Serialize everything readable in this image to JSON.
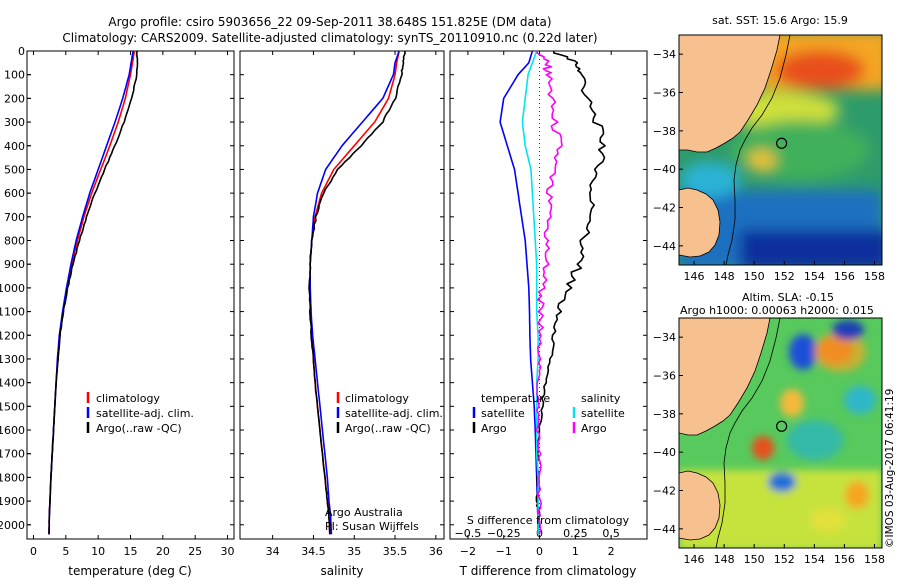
{
  "header": {
    "line1": "Argo profile: csiro 5903656_22 09-Sep-2011 38.648S 151.825E (DM data)",
    "line2": "Climatology: CARS2009. Satellite-adjusted climatology: synTS_20110910.nc (0.22d later)"
  },
  "depth_axis": {
    "ticks": [
      0,
      100,
      200,
      300,
      400,
      500,
      600,
      700,
      800,
      900,
      1000,
      1100,
      1200,
      1300,
      1400,
      1500,
      1600,
      1700,
      1800,
      1900,
      2000
    ],
    "range": [
      0,
      2060
    ]
  },
  "chart_data": [
    {
      "type": "line",
      "id": "temperature",
      "xlabel": "temperature (deg C)",
      "xlim": [
        -1,
        31
      ],
      "xticks": [
        0,
        5,
        10,
        15,
        20,
        25,
        30
      ],
      "y": [
        0,
        50,
        100,
        200,
        300,
        400,
        500,
        600,
        700,
        800,
        900,
        1000,
        1100,
        1200,
        1300,
        1400,
        1500,
        1600,
        1700,
        1800,
        1900,
        1960,
        2040
      ],
      "series": [
        {
          "name": "climatology",
          "color": "#ff0000",
          "values": [
            15.6,
            15.3,
            15.0,
            14.2,
            13.1,
            11.8,
            10.4,
            9.0,
            7.8,
            6.8,
            5.9,
            5.2,
            4.6,
            4.1,
            3.8,
            3.5,
            3.3,
            3.1,
            2.9,
            2.7,
            2.55,
            2.45,
            2.4
          ]
        },
        {
          "name": "satellite-adj. clim.",
          "color": "#0000ff",
          "values": [
            15.4,
            15.1,
            14.8,
            13.8,
            12.6,
            11.3,
            10.0,
            8.7,
            7.6,
            6.6,
            5.8,
            5.1,
            4.5,
            4.0,
            3.7,
            3.5,
            3.3,
            3.1,
            2.9,
            2.7,
            2.55,
            2.45,
            2.4
          ]
        },
        {
          "name": "Argo(..raw -QC)",
          "color": "#000000",
          "values": [
            16.0,
            16.1,
            16.0,
            15.2,
            14.0,
            12.6,
            11.0,
            9.5,
            8.2,
            7.1,
            6.1,
            5.3,
            4.6,
            4.1,
            3.8,
            3.5,
            3.3,
            3.1,
            2.9,
            2.7,
            2.55,
            2.45,
            2.4
          ]
        }
      ],
      "legend": "bottom-center"
    },
    {
      "type": "line",
      "id": "salinity",
      "xlabel": "salinity",
      "xlim": [
        33.6,
        36.1
      ],
      "xticks": [
        34,
        34.5,
        35,
        35.5,
        36
      ],
      "xtick_labels": [
        "34",
        "34.5",
        "35",
        "35.5",
        "36"
      ],
      "y": [
        0,
        50,
        100,
        200,
        300,
        400,
        500,
        600,
        700,
        800,
        900,
        1000,
        1100,
        1200,
        1300,
        1400,
        1500,
        1600,
        1700,
        1800,
        1900,
        1960,
        2040
      ],
      "series": [
        {
          "name": "climatology",
          "color": "#ff0000",
          "values": [
            35.55,
            35.52,
            35.5,
            35.42,
            35.25,
            35.0,
            34.75,
            34.6,
            34.52,
            34.48,
            34.46,
            34.46,
            34.47,
            34.48,
            34.5,
            34.52,
            34.55,
            34.58,
            34.61,
            34.64,
            34.67,
            34.69,
            34.7
          ]
        },
        {
          "name": "satellite-adj. clim.",
          "color": "#0000ff",
          "values": [
            35.55,
            35.5,
            35.48,
            35.35,
            35.1,
            34.85,
            34.65,
            34.55,
            34.5,
            34.48,
            34.46,
            34.46,
            34.47,
            34.49,
            34.52,
            34.55,
            34.58,
            34.61,
            34.64,
            34.67,
            34.69,
            34.71,
            34.72
          ]
        },
        {
          "name": "Argo(..raw -QC)",
          "color": "#000000",
          "values": [
            35.62,
            35.6,
            35.58,
            35.5,
            35.35,
            35.08,
            34.8,
            34.62,
            34.53,
            34.48,
            34.46,
            34.45,
            34.46,
            34.47,
            34.5,
            34.52,
            34.55,
            34.58,
            34.61,
            34.64,
            34.67,
            34.69,
            34.7
          ]
        }
      ],
      "legend": "bottom-center",
      "annotation": {
        "line1": "Argo Australia",
        "line2": "PI: Susan Wijffels"
      }
    },
    {
      "type": "line",
      "id": "difference",
      "xlabel": "T difference from climatology",
      "xlabel_top": "S difference from climatology",
      "xlim": [
        -2.5,
        3.0
      ],
      "xticks": [
        -2,
        -1,
        0,
        1,
        2
      ],
      "xtick_labels": [
        "−2",
        "−1",
        "0",
        "1",
        "2"
      ],
      "s_ticks": [
        -0.5,
        -0.25,
        0,
        0.25,
        0.5
      ],
      "s_tick_labels": [
        "−0.5",
        "−0.25",
        "0",
        "0.25",
        "0.5"
      ],
      "s_scale": 4,
      "y": [
        0,
        50,
        100,
        200,
        300,
        400,
        500,
        600,
        700,
        800,
        900,
        1000,
        1100,
        1200,
        1300,
        1400,
        1500,
        1600,
        1700,
        1800,
        1900,
        1960,
        2040
      ],
      "series": [
        {
          "name": "T satellite",
          "group": "temperature",
          "color": "#0000ff",
          "values": [
            -0.2,
            -0.3,
            -0.6,
            -1.0,
            -1.1,
            -0.9,
            -0.7,
            -0.6,
            -0.5,
            -0.4,
            -0.35,
            -0.3,
            -0.28,
            -0.27,
            -0.25,
            -0.2,
            -0.15,
            -0.12,
            -0.1,
            -0.08,
            -0.06,
            -0.05,
            -0.04
          ]
        },
        {
          "name": "T Argo",
          "group": "temperature",
          "color": "#000000",
          "values": [
            0.4,
            1.0,
            1.2,
            1.3,
            1.6,
            1.8,
            1.6,
            1.4,
            1.5,
            1.2,
            1.1,
            0.8,
            0.5,
            0.4,
            0.3,
            0.15,
            0.05,
            0.0,
            -0.05,
            -0.05,
            -0.05,
            -0.04,
            -0.03
          ]
        },
        {
          "name": "S satellite",
          "group": "salinity",
          "color": "#00e5ee",
          "values": [
            -0.02,
            -0.05,
            -0.08,
            -0.1,
            -0.12,
            -0.1,
            -0.06,
            -0.05,
            -0.04,
            -0.03,
            -0.02,
            -0.02,
            -0.02,
            -0.01,
            -0.01,
            -0.02,
            -0.02,
            -0.02,
            -0.02,
            -0.01,
            -0.01,
            -0.01,
            -0.01
          ]
        },
        {
          "name": "S Argo",
          "group": "salinity",
          "color": "#ff00ff",
          "values": [
            -0.01,
            0.05,
            0.06,
            0.08,
            0.1,
            0.14,
            0.09,
            0.06,
            0.06,
            0.05,
            0.05,
            0.02,
            0.0,
            0.0,
            0.0,
            -0.01,
            -0.01,
            -0.01,
            0.0,
            0.0,
            0.0,
            0.0,
            0.0
          ]
        }
      ],
      "legend": {
        "temperature_title": "temperature",
        "salinity_title": "salinity",
        "t_sat": "satellite",
        "t_argo": "Argo",
        "s_sat": "satellite",
        "s_argo": "Argo"
      }
    },
    {
      "type": "heatmap",
      "id": "sst_map",
      "title": "sat. SST: 15.6 Argo: 15.9",
      "xticks": [
        146,
        148,
        150,
        152,
        154,
        156,
        158
      ],
      "yticks": [
        -34,
        -36,
        -38,
        -40,
        -42,
        -44
      ],
      "xlim": [
        145,
        158.5
      ],
      "ylim": [
        -45,
        -33
      ],
      "float_position": {
        "lon": 151.825,
        "lat": -38.648
      }
    },
    {
      "type": "heatmap",
      "id": "sla_map",
      "title_line1": "Altim. SLA: -0.15",
      "title_line2": "Argo h1000: 0.00063 h2000: 0.015",
      "xticks": [
        146,
        148,
        150,
        152,
        154,
        156,
        158
      ],
      "yticks": [
        -34,
        -36,
        -38,
        -40,
        -42,
        -44
      ],
      "xlim": [
        145,
        158.5
      ],
      "ylim": [
        -45,
        -33
      ],
      "float_position": {
        "lon": 151.825,
        "lat": -38.648
      }
    }
  ],
  "credit": "©IMOS 03-Aug-2017 06:41:19"
}
